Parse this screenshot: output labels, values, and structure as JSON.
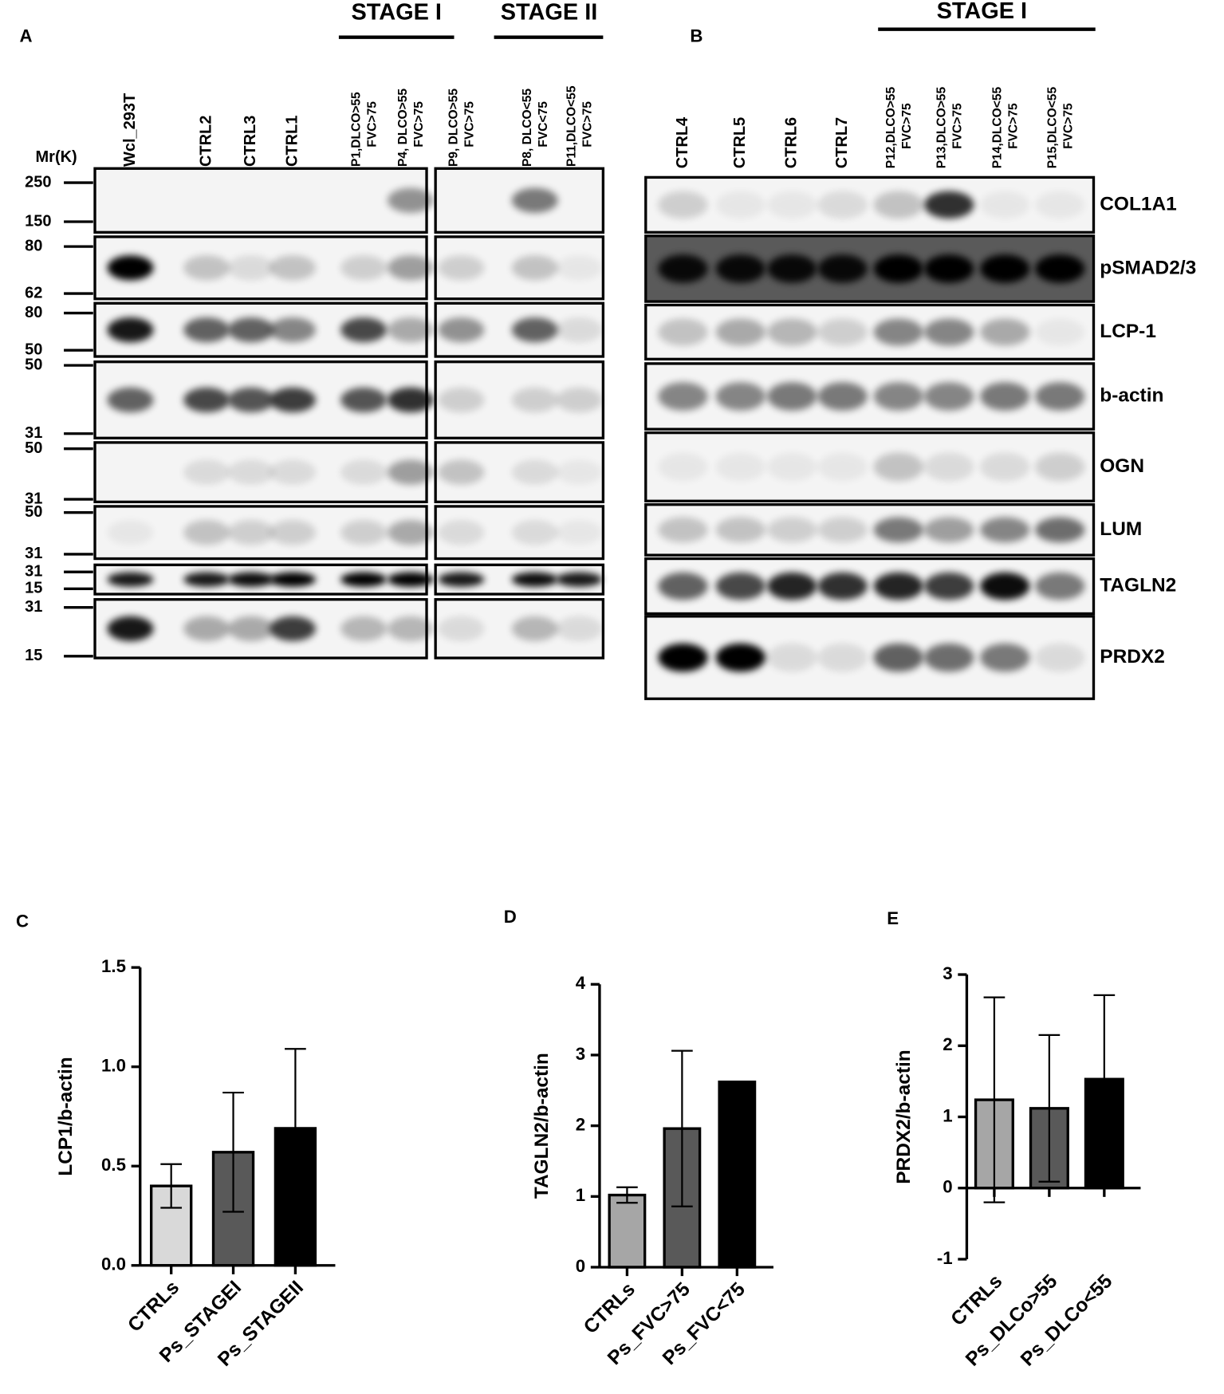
{
  "panel_labels": [
    "A",
    "B",
    "C",
    "D",
    "E"
  ],
  "blot_a": {
    "stages": [
      "STAGE I",
      "STAGE II"
    ],
    "mw_label": "Mr(K)",
    "lanes": [
      [
        "Wcl_293T"
      ],
      [
        "CTRL2"
      ],
      [
        "CTRL3"
      ],
      [
        "CTRL1"
      ],
      [
        "P1,DLCO>55",
        "FVC>75"
      ],
      [
        "P4, DLCO>55",
        "FVC>75"
      ],
      [
        "P9, DLCO>55",
        "FVC>75"
      ],
      [
        "P8, DLCO<55",
        "FVC<75"
      ],
      [
        "P11,DLCO<55",
        "FVC>75"
      ]
    ],
    "markers": [
      "250",
      "150",
      "80",
      "62",
      "80",
      "50",
      "50",
      "31",
      "50",
      "31",
      "50",
      "31",
      "31",
      "15",
      "31",
      "15"
    ]
  },
  "blot_b": {
    "stage": "STAGE I",
    "lanes": [
      [
        "CTRL4"
      ],
      [
        "CTRL5"
      ],
      [
        "CTRL6"
      ],
      [
        "CTRL7"
      ],
      [
        "P12,DLCO>55",
        "FVC>75"
      ],
      [
        "P13,DLCO>55",
        "FVC>75"
      ],
      [
        "P14,DLCO<55",
        "FVC>75"
      ],
      [
        "P15,DLCO<55",
        "FVC>75"
      ]
    ],
    "proteins": [
      "COL1A1",
      "pSMAD2/3",
      "LCP-1",
      "b-actin",
      "OGN",
      "LUM",
      "TAGLN2",
      "PRDX2"
    ]
  },
  "chart_data": [
    {
      "type": "bar",
      "y_label": "LCP1/b-actin",
      "categories": [
        "CTRLs",
        "Ps_STAGEI",
        "Ps_STAGEII"
      ],
      "values": [
        0.4,
        0.57,
        0.69
      ],
      "errors": [
        0.11,
        0.3,
        0.4
      ],
      "colors": [
        "#d9d9d9",
        "#595959",
        "#000000"
      ],
      "ylim": [
        0,
        1.5
      ],
      "yticks": [
        {
          "value": 0,
          "label": "0.0"
        },
        0.5,
        {
          "value": 1,
          "label": "1.0"
        },
        1.5
      ]
    },
    {
      "type": "bar",
      "y_label": "TAGLN2/b-actin",
      "categories": [
        "CTRLs",
        "Ps_FVC>75",
        "Ps_FVC<75"
      ],
      "values": [
        1.02,
        1.96,
        2.62
      ],
      "errors": [
        0.11,
        1.1,
        null
      ],
      "colors": [
        "#a6a6a6",
        "#595959",
        "#000000"
      ],
      "ylim": [
        0,
        4
      ],
      "yticks": [
        0,
        1,
        2,
        3,
        4
      ]
    },
    {
      "type": "bar",
      "y_label": "PRDX2/b-actin",
      "categories": [
        "CTRLs",
        "Ps_DLCo>55",
        "Ps_DLCo<55"
      ],
      "values": [
        1.24,
        1.12,
        1.53
      ],
      "errors": [
        1.44,
        1.03,
        1.18
      ],
      "colors": [
        "#a6a6a6",
        "#595959",
        "#000000"
      ],
      "ylim": [
        -1,
        3
      ],
      "yticks": [
        -1,
        0,
        1,
        2,
        3
      ]
    }
  ]
}
